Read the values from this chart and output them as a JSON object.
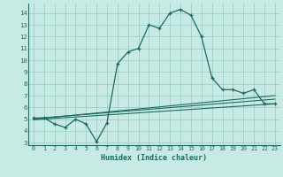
{
  "xlabel": "Humidex (Indice chaleur)",
  "ylabel": "",
  "bg_color": "#c8eae4",
  "grid_color": "#9ecfc7",
  "line_color": "#1e6b5e",
  "xlim": [
    -0.5,
    23.5
  ],
  "ylim": [
    2.8,
    14.8
  ],
  "yticks": [
    3,
    4,
    5,
    6,
    7,
    8,
    9,
    10,
    11,
    12,
    13,
    14
  ],
  "xticks": [
    0,
    1,
    2,
    3,
    4,
    5,
    6,
    7,
    8,
    9,
    10,
    11,
    12,
    13,
    14,
    15,
    16,
    17,
    18,
    19,
    20,
    21,
    22,
    23
  ],
  "series": [
    {
      "x": [
        0,
        1,
        2,
        3,
        4,
        5,
        6,
        7,
        8,
        9,
        10,
        11,
        12,
        13,
        14,
        15,
        16,
        17,
        18,
        19,
        20,
        21,
        22,
        23
      ],
      "y": [
        5.1,
        5.1,
        4.6,
        4.3,
        5.0,
        4.6,
        3.1,
        4.7,
        9.7,
        10.7,
        11.0,
        13.0,
        12.7,
        14.0,
        14.3,
        13.8,
        12.0,
        8.5,
        7.5,
        7.5,
        7.2,
        7.5,
        6.3,
        6.3
      ],
      "marker": true
    },
    {
      "x": [
        0,
        23
      ],
      "y": [
        5.05,
        6.7
      ],
      "marker": false
    },
    {
      "x": [
        0,
        23
      ],
      "y": [
        5.0,
        7.0
      ],
      "marker": false
    },
    {
      "x": [
        0,
        23
      ],
      "y": [
        4.95,
        6.3
      ],
      "marker": false
    }
  ]
}
